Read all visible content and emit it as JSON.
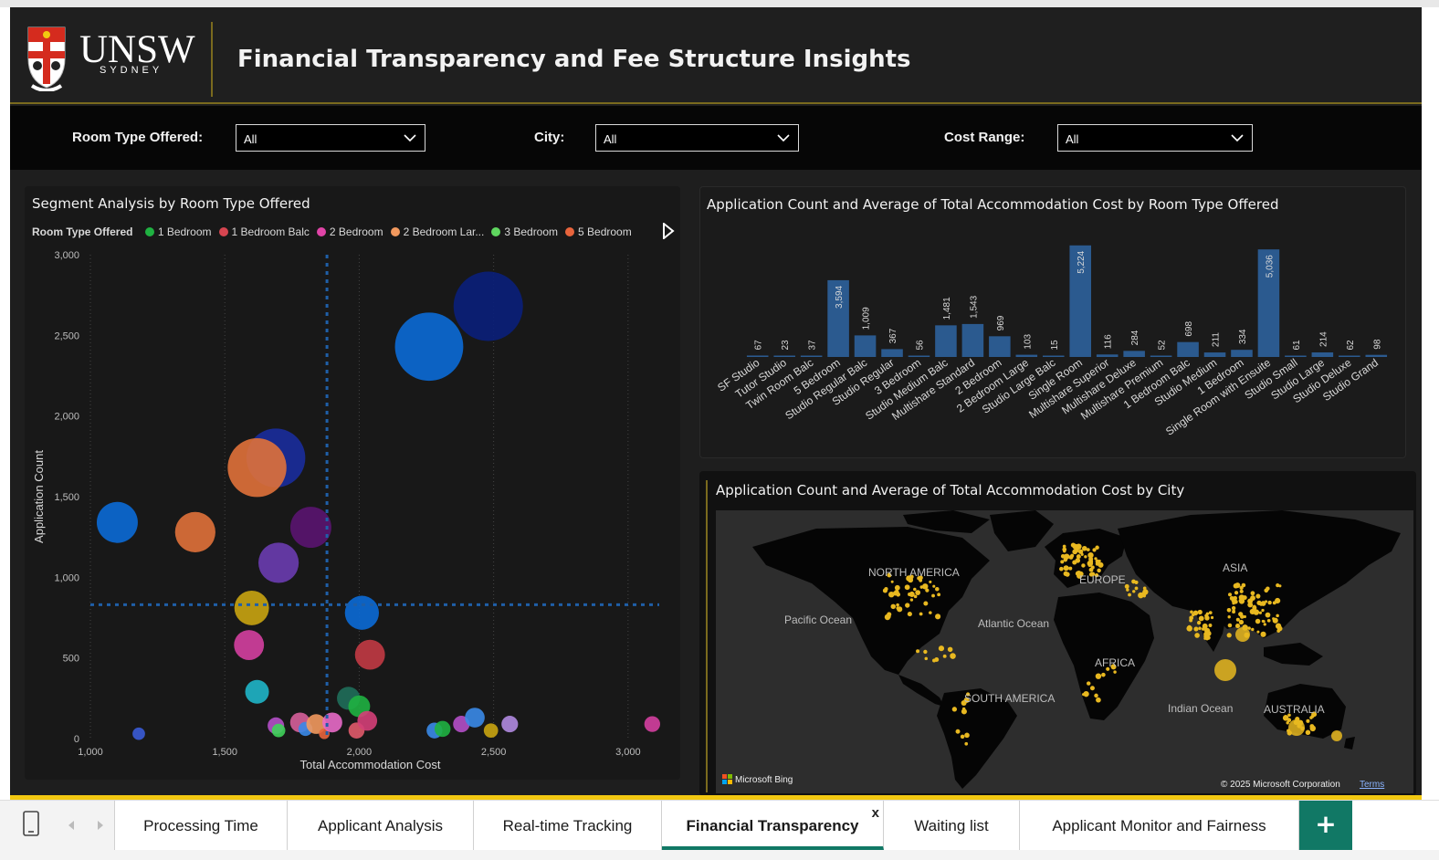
{
  "header": {
    "logo_word": "UNSW",
    "logo_sub": "SYDNEY",
    "title": "Financial Transparency and Fee Structure Insights"
  },
  "filters": {
    "room_type": {
      "label": "Room Type Offered:",
      "value": "All"
    },
    "city": {
      "label": "City:",
      "value": "All"
    },
    "cost_range": {
      "label": "Cost Range:",
      "value": "All"
    }
  },
  "scatter": {
    "title": "Segment Analysis by Room Type Offered",
    "legend_title": "Room Type Offered",
    "legend_items": [
      {
        "label": "1 Bedroom",
        "color": "#1fb141"
      },
      {
        "label": "1 Bedroom Balc",
        "color": "#d64550"
      },
      {
        "label": "2 Bedroom",
        "color": "#e044a7"
      },
      {
        "label": "2 Bedroom Lar...",
        "color": "#f2995e"
      },
      {
        "label": "3 Bedroom",
        "color": "#5fd65f"
      },
      {
        "label": "5 Bedroom",
        "color": "#e8643c"
      }
    ]
  },
  "bars": {
    "title": "Application Count and Average of Total Accommodation Cost by Room Type Offered"
  },
  "map": {
    "title": "Application Count and Average of Total Accommodation Cost by City",
    "labels": {
      "north_america": "NORTH AMERICA",
      "europe": "EUROPE",
      "asia": "ASIA",
      "pacific": "Pacific Ocean",
      "atlantic": "Atlantic Ocean",
      "africa": "AFRICA",
      "south_america": "SOUTH AMERICA",
      "indian": "Indian Ocean",
      "australia": "AUSTRALIA"
    },
    "bing": "Microsoft Bing",
    "copyright": "© 2025 Microsoft Corporation",
    "terms": "Terms",
    "accent_color": "#e8b820"
  },
  "tabs": [
    {
      "label": "Processing Time"
    },
    {
      "label": "Applicant Analysis"
    },
    {
      "label": "Real-time Tracking"
    },
    {
      "label": "Financial Transparency",
      "active": true
    },
    {
      "label": "Waiting list"
    },
    {
      "label": "Applicant Monitor and Fairness"
    }
  ],
  "tab_close": "x",
  "tab_add": "+",
  "chart_data": [
    {
      "type": "scatter",
      "title": "Segment Analysis by Room Type Offered",
      "xlabel": "Total Accommodation Cost",
      "ylabel": "Application Count",
      "xlim": [
        1000,
        3150
      ],
      "ylim": [
        0,
        3000
      ],
      "xticks": [
        1000,
        1500,
        2000,
        2500,
        3000
      ],
      "yticks": [
        0,
        500,
        1000,
        1500,
        2000,
        2500,
        3000
      ],
      "xtick_labels": [
        "1,000",
        "1,500",
        "2,000",
        "2,500",
        "3,000"
      ],
      "ytick_labels": [
        "0",
        "500",
        "1,000",
        "1,500",
        "2,000",
        "2,500",
        "3,000"
      ],
      "reference_lines": {
        "x": 1880,
        "y": 830
      },
      "points": [
        {
          "x": 2480,
          "y": 2680,
          "size": 5224,
          "color": "#0a1f7a"
        },
        {
          "x": 2260,
          "y": 2430,
          "size": 5036,
          "color": "#0b6ad6"
        },
        {
          "x": 1690,
          "y": 1740,
          "size": 3594,
          "color": "#1a2c9c"
        },
        {
          "x": 1620,
          "y": 1680,
          "size": 3594,
          "color": "#e0713a"
        },
        {
          "x": 1100,
          "y": 1340,
          "size": 1543,
          "color": "#0b6ad6"
        },
        {
          "x": 1390,
          "y": 1280,
          "size": 1481,
          "color": "#e0713a"
        },
        {
          "x": 1820,
          "y": 1310,
          "size": 1543,
          "color": "#5a1470"
        },
        {
          "x": 1700,
          "y": 1090,
          "size": 1481,
          "color": "#6a3cb0"
        },
        {
          "x": 1600,
          "y": 810,
          "size": 1009,
          "color": "#c9a411"
        },
        {
          "x": 2010,
          "y": 780,
          "size": 969,
          "color": "#0b6ad6"
        },
        {
          "x": 1590,
          "y": 580,
          "size": 698,
          "color": "#d43fa0"
        },
        {
          "x": 2040,
          "y": 520,
          "size": 698,
          "color": "#c23a44"
        },
        {
          "x": 1620,
          "y": 290,
          "size": 367,
          "color": "#1fb5c8"
        },
        {
          "x": 1960,
          "y": 250,
          "size": 334,
          "color": "#1f6e5a"
        },
        {
          "x": 2000,
          "y": 200,
          "size": 284,
          "color": "#1fb141"
        },
        {
          "x": 1180,
          "y": 30,
          "size": 37,
          "color": "#3a5bd6"
        },
        {
          "x": 1690,
          "y": 80,
          "size": 116,
          "color": "#b44fc8"
        },
        {
          "x": 1700,
          "y": 50,
          "size": 52,
          "color": "#3fd15a"
        },
        {
          "x": 1780,
          "y": 100,
          "size": 214,
          "color": "#d65f9a"
        },
        {
          "x": 1800,
          "y": 60,
          "size": 61,
          "color": "#3a8ae8"
        },
        {
          "x": 1840,
          "y": 90,
          "size": 211,
          "color": "#f2995e"
        },
        {
          "x": 1870,
          "y": 30,
          "size": 15,
          "color": "#e8643c"
        },
        {
          "x": 1900,
          "y": 100,
          "size": 214,
          "color": "#e86ac8"
        },
        {
          "x": 1990,
          "y": 50,
          "size": 103,
          "color": "#e05a6a"
        },
        {
          "x": 2030,
          "y": 110,
          "size": 211,
          "color": "#d43f78"
        },
        {
          "x": 2280,
          "y": 50,
          "size": 98,
          "color": "#3a8ae8"
        },
        {
          "x": 2310,
          "y": 60,
          "size": 103,
          "color": "#1fb141"
        },
        {
          "x": 2380,
          "y": 90,
          "size": 116,
          "color": "#b44fc8"
        },
        {
          "x": 2430,
          "y": 130,
          "size": 211,
          "color": "#3a8ae8"
        },
        {
          "x": 2490,
          "y": 50,
          "size": 67,
          "color": "#c9a411"
        },
        {
          "x": 2560,
          "y": 90,
          "size": 116,
          "color": "#b08ae0"
        },
        {
          "x": 3090,
          "y": 90,
          "size": 98,
          "color": "#d43fa0"
        }
      ]
    },
    {
      "type": "bar",
      "title": "Application Count and Average of Total Accommodation Cost by Room Type Offered",
      "categories": [
        "SF Studio",
        "Tutor Studio",
        "Twin Room Balc",
        "5 Bedroom",
        "Studio Regular Balc",
        "Studio Regular",
        "3 Bedroom",
        "Studio Medium Balc",
        "Multishare Standard",
        "2 Bedroom",
        "2 Bedroom Large",
        "Studio Large Balc",
        "Single Room",
        "Multishare Superior",
        "Multishare Deluxe",
        "Multishare Premium",
        "1 Bedroom Balc",
        "Studio Medium",
        "1 Bedroom",
        "Single Room with Ensuite",
        "Studio Small",
        "Studio Large",
        "Studio Deluxe",
        "Studio Grand"
      ],
      "values": [
        67,
        23,
        37,
        3594,
        1009,
        367,
        56,
        1481,
        1543,
        969,
        103,
        15,
        5224,
        116,
        284,
        52,
        698,
        211,
        334,
        5036,
        61,
        214,
        62,
        98
      ],
      "value_labels": [
        "67",
        "23",
        "37",
        "3,594",
        "1,009",
        "367",
        "56",
        "1,481",
        "1,543",
        "969",
        "103",
        "15",
        "5,224",
        "116",
        "284",
        "52",
        "698",
        "211",
        "334",
        "5,036",
        "61",
        "214",
        "62",
        "98"
      ],
      "color": "#2b5a8f",
      "ylim": [
        0,
        5300
      ]
    }
  ]
}
